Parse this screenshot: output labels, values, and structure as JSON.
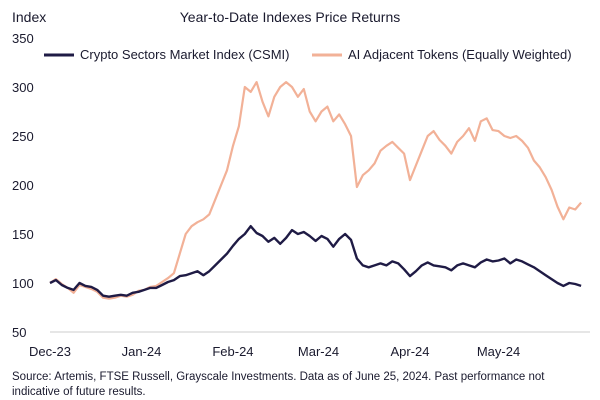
{
  "source_note": "Source: Artemis, FTSE Russell, Grayscale Investments. Data as of June 25, 2024. Past performance not indicative of future results.",
  "colors": {
    "csmi": "#1f1b45",
    "ai": "#f2b197",
    "axis": "#cccccc",
    "text": "#1a1a2e"
  },
  "chart_data": {
    "type": "line",
    "title": "Year-to-Date Indexes Price Returns",
    "ylabel": "Index",
    "xlabel": "",
    "ylim": [
      50,
      350
    ],
    "yticks": [
      50,
      100,
      150,
      200,
      250,
      300,
      350
    ],
    "xticks": [
      {
        "label": "Dec-23",
        "day": 0
      },
      {
        "label": "Jan-24",
        "day": 31
      },
      {
        "label": "Feb-24",
        "day": 62
      },
      {
        "label": "Mar-24",
        "day": 91
      },
      {
        "label": "Apr-24",
        "day": 122
      },
      {
        "label": "May-24",
        "day": 152
      }
    ],
    "grid": false,
    "legend_position": "top",
    "series": [
      {
        "name": "Crypto Sectors Market Index (CSMI)",
        "color": "#1f1b45",
        "points": [
          [
            0,
            100
          ],
          [
            2,
            103
          ],
          [
            4,
            98
          ],
          [
            6,
            95
          ],
          [
            8,
            93
          ],
          [
            10,
            100
          ],
          [
            12,
            97
          ],
          [
            14,
            96
          ],
          [
            16,
            93
          ],
          [
            18,
            87
          ],
          [
            20,
            86
          ],
          [
            22,
            87
          ],
          [
            24,
            88
          ],
          [
            26,
            87
          ],
          [
            28,
            90
          ],
          [
            30,
            91
          ],
          [
            32,
            93
          ],
          [
            34,
            95
          ],
          [
            36,
            95
          ],
          [
            38,
            98
          ],
          [
            40,
            101
          ],
          [
            42,
            103
          ],
          [
            44,
            107
          ],
          [
            46,
            108
          ],
          [
            48,
            110
          ],
          [
            50,
            112
          ],
          [
            52,
            108
          ],
          [
            54,
            112
          ],
          [
            56,
            118
          ],
          [
            58,
            124
          ],
          [
            60,
            130
          ],
          [
            62,
            138
          ],
          [
            64,
            145
          ],
          [
            66,
            150
          ],
          [
            68,
            158
          ],
          [
            70,
            151
          ],
          [
            72,
            148
          ],
          [
            74,
            142
          ],
          [
            76,
            146
          ],
          [
            78,
            140
          ],
          [
            80,
            146
          ],
          [
            82,
            154
          ],
          [
            84,
            150
          ],
          [
            86,
            152
          ],
          [
            88,
            148
          ],
          [
            90,
            143
          ],
          [
            92,
            148
          ],
          [
            94,
            145
          ],
          [
            96,
            137
          ],
          [
            98,
            145
          ],
          [
            100,
            150
          ],
          [
            102,
            144
          ],
          [
            104,
            125
          ],
          [
            106,
            118
          ],
          [
            108,
            116
          ],
          [
            110,
            118
          ],
          [
            112,
            120
          ],
          [
            114,
            118
          ],
          [
            116,
            122
          ],
          [
            118,
            120
          ],
          [
            120,
            114
          ],
          [
            122,
            107
          ],
          [
            124,
            112
          ],
          [
            126,
            118
          ],
          [
            128,
            121
          ],
          [
            130,
            118
          ],
          [
            132,
            117
          ],
          [
            134,
            116
          ],
          [
            136,
            113
          ],
          [
            138,
            118
          ],
          [
            140,
            120
          ],
          [
            142,
            118
          ],
          [
            144,
            116
          ],
          [
            146,
            121
          ],
          [
            148,
            124
          ],
          [
            150,
            122
          ],
          [
            152,
            123
          ],
          [
            154,
            125
          ],
          [
            156,
            120
          ],
          [
            158,
            124
          ],
          [
            160,
            122
          ],
          [
            162,
            119
          ],
          [
            164,
            116
          ],
          [
            166,
            112
          ],
          [
            168,
            108
          ],
          [
            170,
            104
          ],
          [
            172,
            100
          ],
          [
            174,
            97
          ],
          [
            176,
            100
          ],
          [
            178,
            99
          ],
          [
            180,
            97
          ]
        ]
      },
      {
        "name": "AI Adjacent Tokens (Equally Weighted)",
        "color": "#f2b197",
        "points": [
          [
            0,
            100
          ],
          [
            2,
            104
          ],
          [
            4,
            99
          ],
          [
            6,
            95
          ],
          [
            8,
            90
          ],
          [
            10,
            98
          ],
          [
            12,
            96
          ],
          [
            14,
            94
          ],
          [
            16,
            91
          ],
          [
            18,
            85
          ],
          [
            20,
            84
          ],
          [
            22,
            85
          ],
          [
            24,
            87
          ],
          [
            26,
            86
          ],
          [
            28,
            88
          ],
          [
            30,
            92
          ],
          [
            32,
            93
          ],
          [
            34,
            96
          ],
          [
            36,
            97
          ],
          [
            38,
            101
          ],
          [
            40,
            105
          ],
          [
            42,
            110
          ],
          [
            44,
            130
          ],
          [
            46,
            150
          ],
          [
            48,
            158
          ],
          [
            50,
            162
          ],
          [
            52,
            165
          ],
          [
            54,
            170
          ],
          [
            56,
            185
          ],
          [
            58,
            200
          ],
          [
            60,
            215
          ],
          [
            62,
            240
          ],
          [
            64,
            260
          ],
          [
            66,
            300
          ],
          [
            68,
            295
          ],
          [
            70,
            305
          ],
          [
            72,
            285
          ],
          [
            74,
            270
          ],
          [
            76,
            290
          ],
          [
            78,
            300
          ],
          [
            80,
            305
          ],
          [
            82,
            300
          ],
          [
            84,
            290
          ],
          [
            86,
            298
          ],
          [
            88,
            275
          ],
          [
            90,
            265
          ],
          [
            92,
            275
          ],
          [
            94,
            280
          ],
          [
            96,
            265
          ],
          [
            98,
            272
          ],
          [
            100,
            262
          ],
          [
            102,
            250
          ],
          [
            104,
            198
          ],
          [
            106,
            210
          ],
          [
            108,
            215
          ],
          [
            110,
            222
          ],
          [
            112,
            235
          ],
          [
            114,
            240
          ],
          [
            116,
            244
          ],
          [
            118,
            238
          ],
          [
            120,
            232
          ],
          [
            122,
            205
          ],
          [
            124,
            220
          ],
          [
            126,
            235
          ],
          [
            128,
            250
          ],
          [
            130,
            255
          ],
          [
            132,
            246
          ],
          [
            134,
            240
          ],
          [
            136,
            232
          ],
          [
            138,
            244
          ],
          [
            140,
            250
          ],
          [
            142,
            258
          ],
          [
            144,
            245
          ],
          [
            146,
            265
          ],
          [
            148,
            268
          ],
          [
            150,
            256
          ],
          [
            152,
            255
          ],
          [
            154,
            250
          ],
          [
            156,
            248
          ],
          [
            158,
            250
          ],
          [
            160,
            245
          ],
          [
            162,
            238
          ],
          [
            164,
            225
          ],
          [
            166,
            218
          ],
          [
            168,
            208
          ],
          [
            170,
            195
          ],
          [
            172,
            178
          ],
          [
            174,
            165
          ],
          [
            176,
            177
          ],
          [
            178,
            175
          ],
          [
            180,
            182
          ]
        ]
      }
    ]
  }
}
